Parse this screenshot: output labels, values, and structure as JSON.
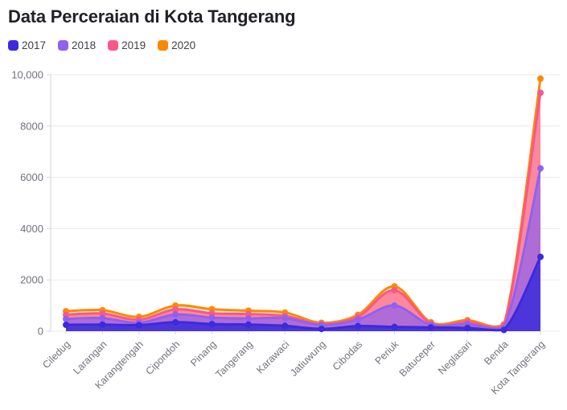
{
  "page": {
    "title": "Data Perceraian di Kota Tangerang"
  },
  "chart_data": {
    "type": "area",
    "title": "Data Perceraian di Kota Tangerang",
    "categories": [
      "Ciledug",
      "Larangan",
      "Karangtengah",
      "Cipondoh",
      "Pinang",
      "Tangerang",
      "Karawaci",
      "Jatiuwung",
      "Cibodas",
      "Periuk",
      "Batuceper",
      "Neglasari",
      "Benda",
      "Kota Tangerang"
    ],
    "series": [
      {
        "name": "2017",
        "color": "#3B2BDB",
        "values": [
          250,
          260,
          240,
          350,
          280,
          260,
          210,
          90,
          200,
          170,
          150,
          130,
          50,
          2900
        ]
      },
      {
        "name": "2018",
        "color": "#9061F0",
        "values": [
          480,
          510,
          330,
          650,
          530,
          500,
          510,
          240,
          450,
          1000,
          240,
          270,
          130,
          6350
        ]
      },
      {
        "name": "2019",
        "color": "#FA5788",
        "values": [
          640,
          690,
          450,
          850,
          700,
          670,
          600,
          280,
          560,
          1600,
          300,
          360,
          220,
          9300
        ]
      },
      {
        "name": "2020",
        "color": "#F98A05",
        "values": [
          780,
          820,
          560,
          1000,
          860,
          800,
          730,
          330,
          640,
          1750,
          350,
          430,
          270,
          9850
        ]
      }
    ],
    "xlabel": "",
    "ylabel": "",
    "ylim": [
      0,
      10000
    ],
    "ytick_values": [
      0,
      2000,
      4000,
      6000,
      8000,
      10000
    ],
    "ytick_labels": [
      "0",
      "2000",
      "4000",
      "6000",
      "8000",
      "10,000"
    ],
    "grid": true,
    "legend_position": "top-left"
  },
  "style": {
    "background": "#ffffff",
    "grid_color": "#e9e9ed",
    "axis_line_color": "#d6d6dc",
    "axis_text_color": "#72727c",
    "title_color": "#1f2126",
    "legend_text_color": "#3f3f46"
  }
}
